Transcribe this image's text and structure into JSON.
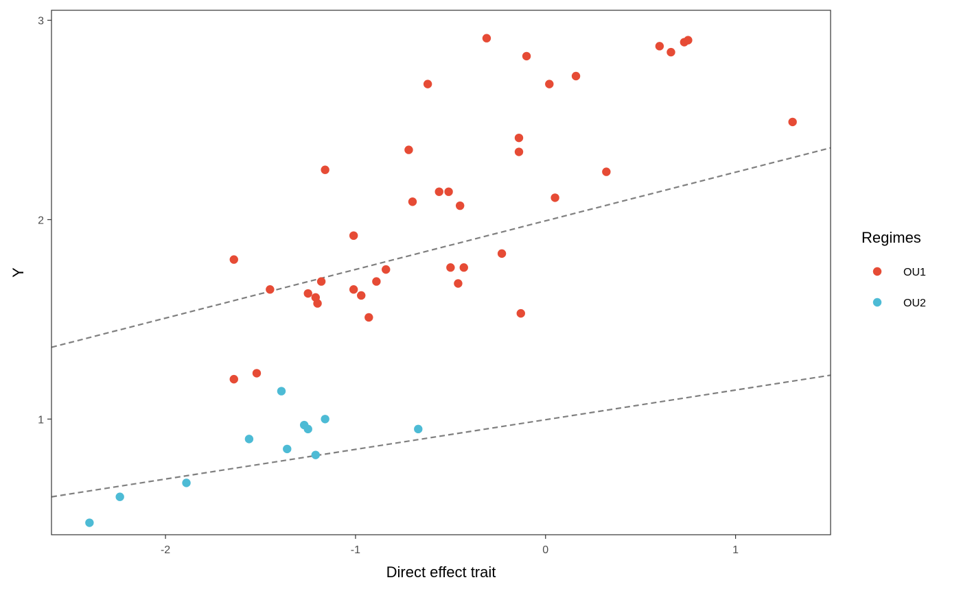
{
  "chart_data": {
    "type": "scatter",
    "title": "",
    "xlabel": "Direct effect trait",
    "ylabel": "Y",
    "xlim": [
      -2.6,
      1.5
    ],
    "ylim": [
      0.42,
      3.05
    ],
    "x_ticks": [
      -2,
      -1,
      0,
      1
    ],
    "y_ticks": [
      1,
      2,
      3
    ],
    "x_tick_labels": [
      "-2",
      "-1",
      "0",
      "1"
    ],
    "y_tick_labels": [
      "1",
      "2",
      "3"
    ],
    "grid": false,
    "legend": {
      "title": "Regimes",
      "placement": "right"
    },
    "series": [
      {
        "name": "OU1",
        "color": "#E64B35",
        "points": [
          [
            -0.31,
            2.91
          ],
          [
            -0.1,
            2.82
          ],
          [
            0.6,
            2.87
          ],
          [
            0.66,
            2.84
          ],
          [
            0.73,
            2.89
          ],
          [
            0.75,
            2.9
          ],
          [
            -0.62,
            2.68
          ],
          [
            0.02,
            2.68
          ],
          [
            0.16,
            2.72
          ],
          [
            1.3,
            2.49
          ],
          [
            -0.14,
            2.41
          ],
          [
            -0.72,
            2.35
          ],
          [
            -0.14,
            2.34
          ],
          [
            -1.16,
            2.25
          ],
          [
            0.32,
            2.24
          ],
          [
            -0.56,
            2.14
          ],
          [
            -0.51,
            2.14
          ],
          [
            0.05,
            2.11
          ],
          [
            -0.7,
            2.09
          ],
          [
            -0.45,
            2.07
          ],
          [
            -1.01,
            1.92
          ],
          [
            -0.23,
            1.83
          ],
          [
            -1.64,
            1.8
          ],
          [
            -0.5,
            1.76
          ],
          [
            -0.43,
            1.76
          ],
          [
            -0.84,
            1.75
          ],
          [
            -1.18,
            1.69
          ],
          [
            -0.89,
            1.69
          ],
          [
            -0.46,
            1.68
          ],
          [
            -1.45,
            1.65
          ],
          [
            -1.01,
            1.65
          ],
          [
            -1.25,
            1.63
          ],
          [
            -0.97,
            1.62
          ],
          [
            -1.21,
            1.61
          ],
          [
            -1.2,
            1.58
          ],
          [
            -0.93,
            1.51
          ],
          [
            -0.13,
            1.53
          ],
          [
            -1.52,
            1.23
          ],
          [
            -1.64,
            1.2
          ]
        ]
      },
      {
        "name": "OU2",
        "color": "#4DBBD5",
        "points": [
          [
            -1.39,
            1.14
          ],
          [
            -1.16,
            1.0
          ],
          [
            -1.27,
            0.97
          ],
          [
            -0.67,
            0.95
          ],
          [
            -1.25,
            0.95
          ],
          [
            -1.56,
            0.9
          ],
          [
            -1.36,
            0.85
          ],
          [
            -1.21,
            0.82
          ],
          [
            -1.89,
            0.68
          ],
          [
            -2.24,
            0.61
          ],
          [
            -2.4,
            0.48
          ]
        ]
      }
    ],
    "reference_lines": [
      {
        "style": "dashed",
        "color": "#7f7f7f",
        "x": [
          -2.6,
          1.5
        ],
        "y": [
          1.36,
          2.36
        ]
      },
      {
        "style": "dashed",
        "color": "#7f7f7f",
        "x": [
          -2.6,
          1.5
        ],
        "y": [
          0.61,
          1.22
        ]
      }
    ]
  }
}
